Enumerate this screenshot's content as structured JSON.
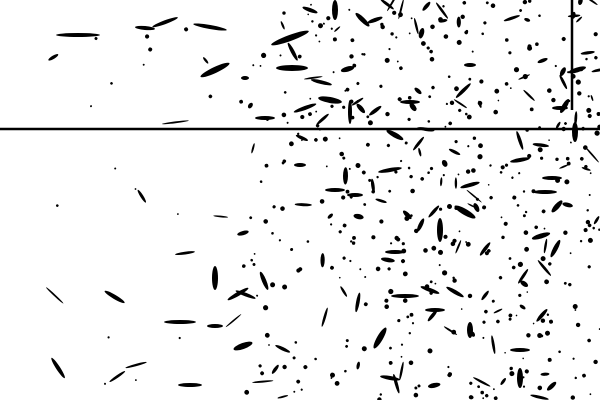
{
  "image": {
    "description_kind": "binary-speckle-field",
    "colors": {
      "background": "#ffffff",
      "ink": "#000000"
    },
    "elements": [
      "horizontal-rule",
      "vertical-rule",
      "streak-marks",
      "dot-marks"
    ]
  }
}
